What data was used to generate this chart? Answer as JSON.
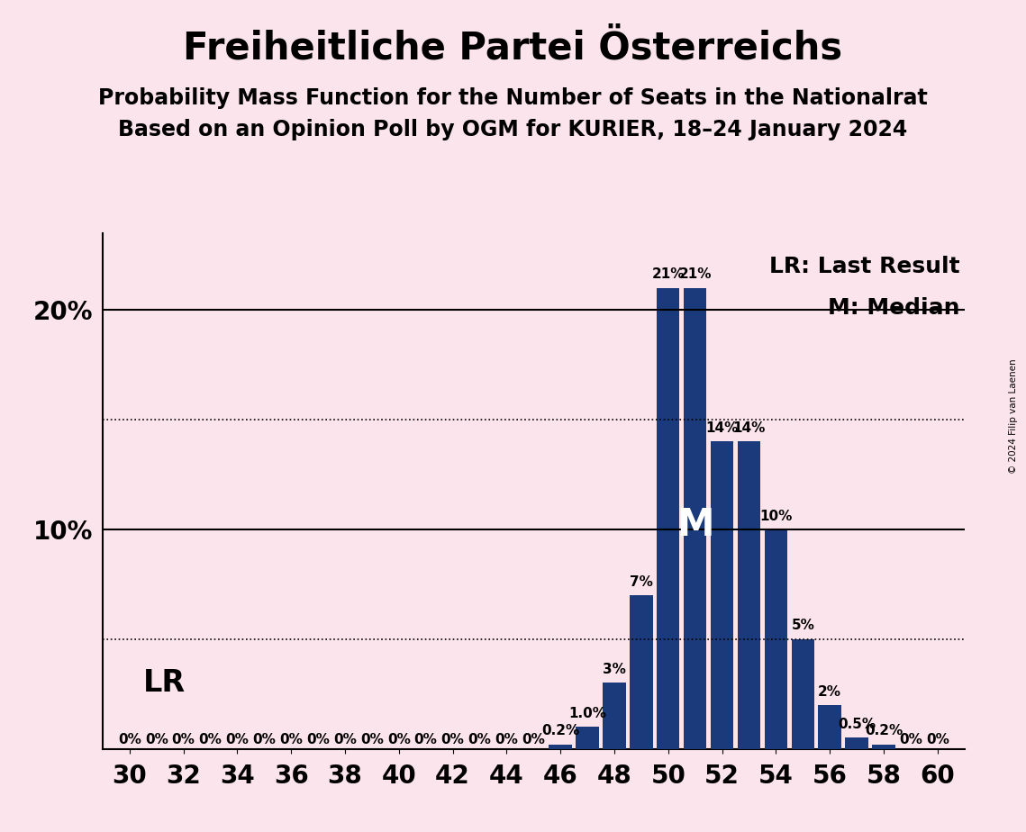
{
  "title": "Freiheitliche Partei Österreichs",
  "subtitle1": "Probability Mass Function for the Number of Seats in the Nationalrat",
  "subtitle2": "Based on an Opinion Poll by OGM for KURIER, 18–24 January 2024",
  "copyright": "© 2024 Filip van Laenen",
  "background_color": "#fce4ec",
  "bar_color": "#1a3a7c",
  "seats": [
    30,
    31,
    32,
    33,
    34,
    35,
    36,
    37,
    38,
    39,
    40,
    41,
    42,
    43,
    44,
    45,
    46,
    47,
    48,
    49,
    50,
    51,
    52,
    53,
    54,
    55,
    56,
    57,
    58,
    59,
    60
  ],
  "probabilities": [
    0.0,
    0.0,
    0.0,
    0.0,
    0.0,
    0.0,
    0.0,
    0.0,
    0.0,
    0.0,
    0.0,
    0.0,
    0.0,
    0.0,
    0.0,
    0.0,
    0.002,
    0.01,
    0.03,
    0.07,
    0.21,
    0.21,
    0.14,
    0.14,
    0.1,
    0.05,
    0.02,
    0.005,
    0.002,
    0.0,
    0.0
  ],
  "bar_labels": [
    "0%",
    "0%",
    "0%",
    "0%",
    "0%",
    "0%",
    "0%",
    "0%",
    "0%",
    "0%",
    "0%",
    "0%",
    "0%",
    "0%",
    "0%",
    "0%",
    "0.2%",
    "1.0%",
    "3%",
    "7%",
    "21%",
    "21%",
    "14%",
    "14%",
    "10%",
    "5%",
    "2%",
    "0.5%",
    "0.2%",
    "0%",
    "0%"
  ],
  "yticks": [
    0.0,
    0.1,
    0.2
  ],
  "ytick_labels": [
    "",
    "10%",
    "20%"
  ],
  "dotted_lines": [
    0.15,
    0.05
  ],
  "lr_seat": 30,
  "median_seat": 51,
  "legend_lr": "LR: Last Result",
  "legend_m": "M: Median",
  "lr_label": "LR",
  "m_label": "M",
  "xlim_left": 29.0,
  "xlim_right": 61.0,
  "ylim": [
    0,
    0.235
  ],
  "title_fontsize": 30,
  "subtitle_fontsize": 17,
  "bar_label_fontsize": 11,
  "tick_fontsize": 20,
  "legend_fontsize": 18,
  "lr_label_fontsize": 24,
  "m_label_fontsize": 30
}
